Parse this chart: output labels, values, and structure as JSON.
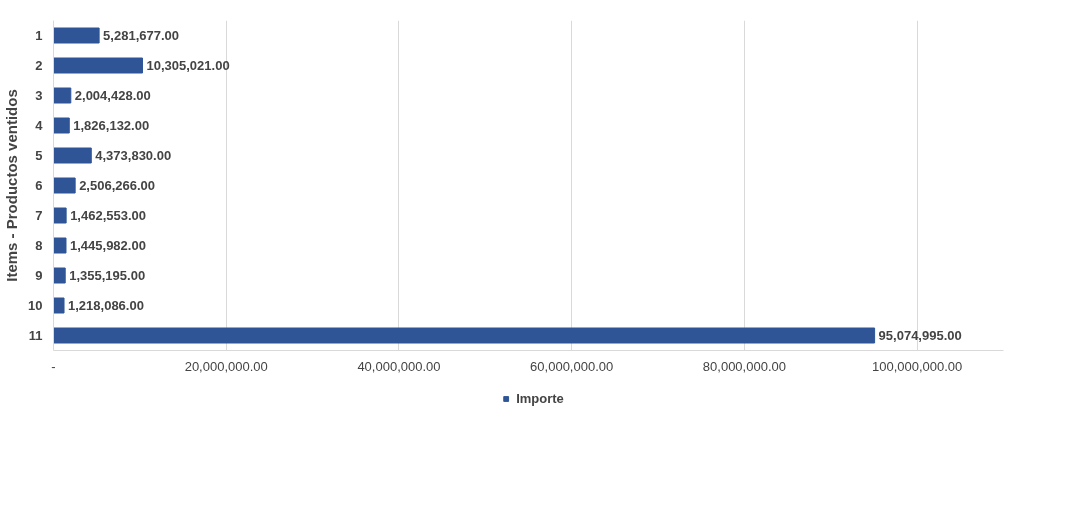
{
  "chart_data": {
    "type": "bar",
    "orientation": "horizontal",
    "ylabel": "Items - Productos ventidos",
    "categories": [
      "1",
      "2",
      "3",
      "4",
      "5",
      "6",
      "7",
      "8",
      "9",
      "10",
      "11"
    ],
    "series": [
      {
        "name": "Importe",
        "color": "#2f5597",
        "values": [
          5281677,
          10305021,
          2004428,
          1826132,
          4373830,
          2506266,
          1462553,
          1445982,
          1355195,
          1218086,
          95074995
        ],
        "value_labels": [
          "5,281,677.00",
          "10,305,021.00",
          "2,004,428.00",
          "1,826,132.00",
          "4,373,830.00",
          "2,506,266.00",
          "1,462,553.00",
          "1,445,982.00",
          "1,355,195.00",
          "1,218,086.00",
          "95,074,995.00"
        ]
      }
    ],
    "xlim": [
      0,
      110000000
    ],
    "xticks": [
      {
        "value": 0,
        "label": "-"
      },
      {
        "value": 20000000,
        "label": "20,000,000.00"
      },
      {
        "value": 40000000,
        "label": "40,000,000.00"
      },
      {
        "value": 60000000,
        "label": "60,000,000.00"
      },
      {
        "value": 80000000,
        "label": "80,000,000.00"
      },
      {
        "value": 100000000,
        "label": "100,000,000.00"
      }
    ],
    "grid": "x",
    "legend": "bottom"
  }
}
